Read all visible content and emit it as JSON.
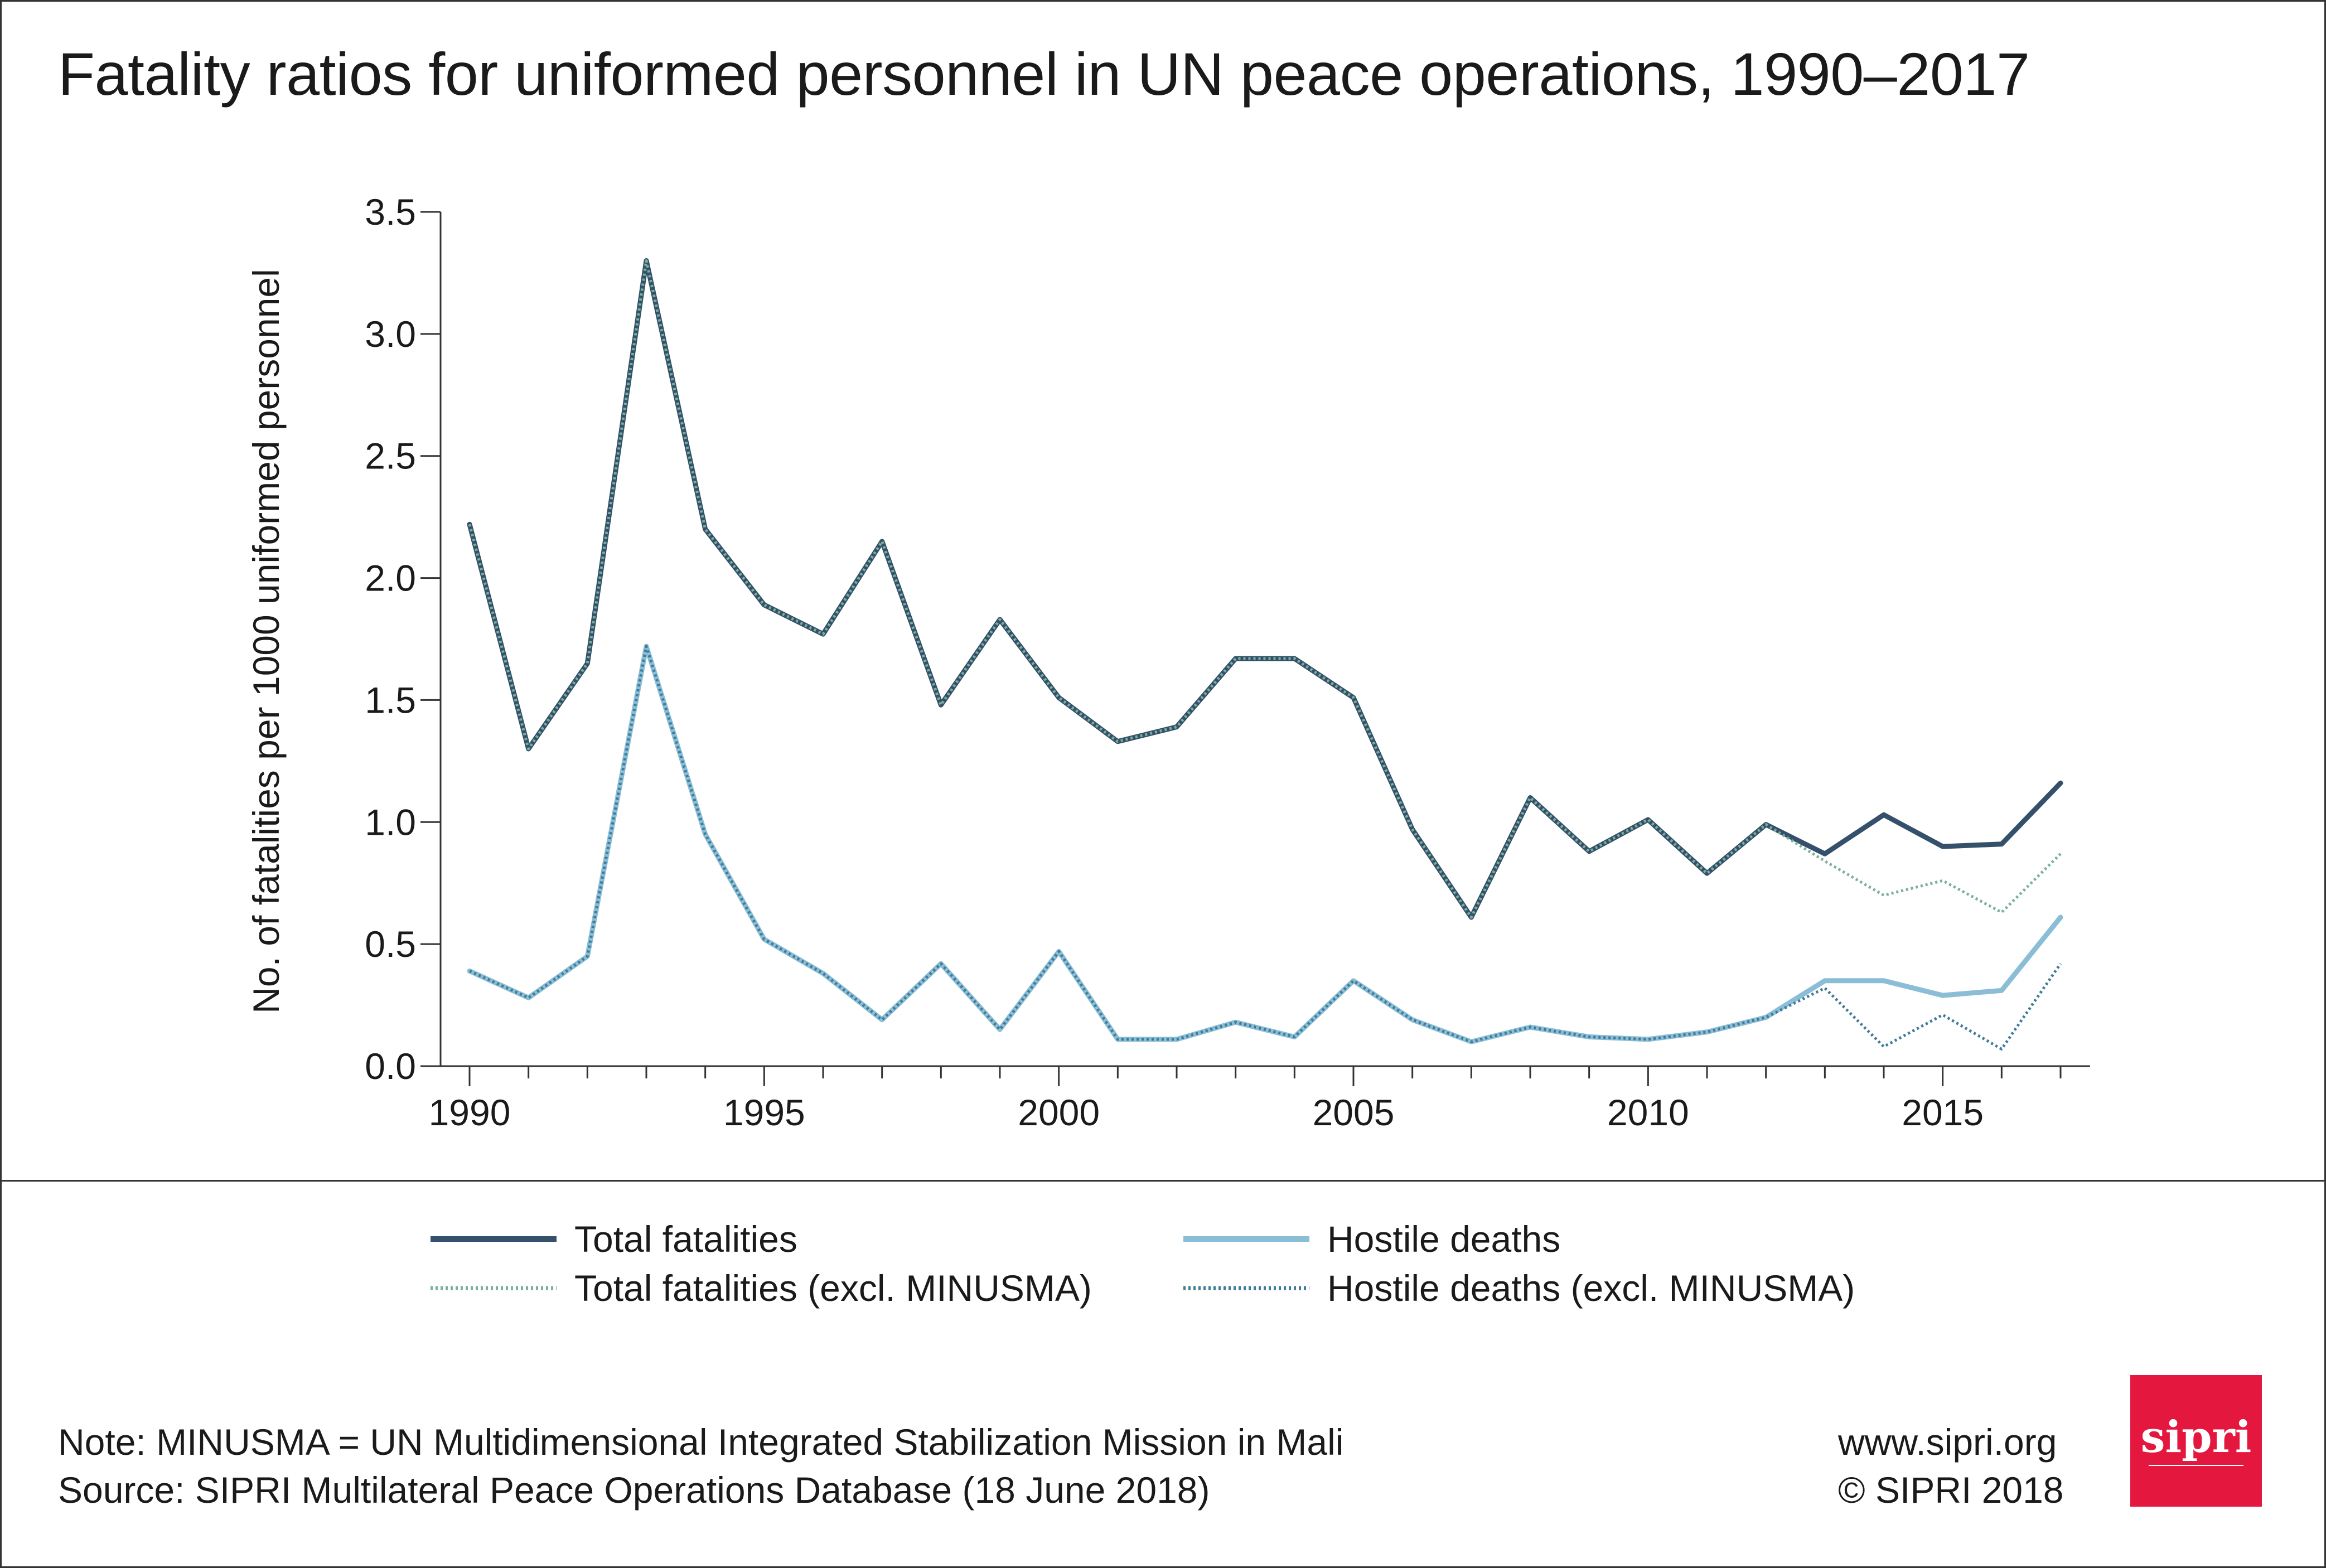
{
  "chart_data": {
    "type": "line",
    "title": "Fatality ratios for uniformed personnel in UN peace operations, 1990–2017",
    "ylabel": "No. of fatalities per 1000 uniformed personnel",
    "xlabel": "",
    "xlim": [
      1990,
      2017.5
    ],
    "ylim": [
      0,
      3.5
    ],
    "x_ticks": [
      "1990",
      "1995",
      "2000",
      "2005",
      "2010",
      "2015"
    ],
    "y_ticks": [
      "0.0",
      "0.5",
      "1.0",
      "1.5",
      "2.0",
      "2.5",
      "3.0",
      "3.5"
    ],
    "x": [
      1990,
      1991,
      1992,
      1993,
      1994,
      1995,
      1996,
      1997,
      1998,
      1999,
      2000,
      2001,
      2002,
      2003,
      2004,
      2005,
      2006,
      2007,
      2008,
      2009,
      2010,
      2011,
      2012,
      2013,
      2014,
      2015,
      2016,
      2017
    ],
    "grid": false,
    "legend_position": "bottom",
    "series": [
      {
        "name": "Total fatalities",
        "color": "#34506a",
        "style": "solid",
        "values": [
          2.22,
          1.3,
          1.65,
          3.3,
          2.2,
          1.89,
          1.77,
          2.15,
          1.48,
          1.83,
          1.51,
          1.33,
          1.39,
          1.67,
          1.67,
          1.51,
          0.97,
          0.61,
          1.1,
          0.88,
          1.01,
          0.79,
          0.99,
          0.87,
          1.03,
          0.9,
          0.91,
          1.16
        ]
      },
      {
        "name": "Total fatalities (excl. MINUSMA)",
        "color": "#7ab09a",
        "style": "dotted",
        "values": [
          2.22,
          1.3,
          1.65,
          3.3,
          2.2,
          1.89,
          1.77,
          2.15,
          1.48,
          1.83,
          1.51,
          1.33,
          1.39,
          1.67,
          1.67,
          1.51,
          0.97,
          0.61,
          1.1,
          0.88,
          1.01,
          0.79,
          0.99,
          0.84,
          0.7,
          0.76,
          0.63,
          0.87
        ]
      },
      {
        "name": "Hostile deaths",
        "color": "#8bbdd6",
        "style": "solid",
        "values": [
          0.39,
          0.28,
          0.45,
          1.72,
          0.95,
          0.52,
          0.38,
          0.19,
          0.42,
          0.15,
          0.47,
          0.11,
          0.11,
          0.18,
          0.12,
          0.35,
          0.19,
          0.1,
          0.16,
          0.12,
          0.11,
          0.14,
          0.2,
          0.35,
          0.35,
          0.29,
          0.31,
          0.61
        ]
      },
      {
        "name": "Hostile deaths (excl. MINUSMA)",
        "color": "#3e7b97",
        "style": "dotted",
        "values": [
          0.39,
          0.28,
          0.45,
          1.72,
          0.95,
          0.52,
          0.38,
          0.19,
          0.42,
          0.15,
          0.47,
          0.11,
          0.11,
          0.18,
          0.12,
          0.35,
          0.19,
          0.1,
          0.16,
          0.12,
          0.11,
          0.14,
          0.2,
          0.32,
          0.08,
          0.21,
          0.07,
          0.42
        ]
      }
    ]
  },
  "legend": [
    {
      "label": "Total fatalities",
      "color": "#34506a",
      "style": "solid"
    },
    {
      "label": "Hostile deaths",
      "color": "#8bbdd6",
      "style": "solid"
    },
    {
      "label": "Total fatalities (excl. MINUSMA)",
      "color": "#7ab09a",
      "style": "dotted"
    },
    {
      "label": "Hostile deaths (excl. MINUSMA)",
      "color": "#3e7b97",
      "style": "dotted"
    }
  ],
  "footer": {
    "note": "Note: MINUSMA = UN Multidimensional Integrated Stabilization Mission in Mali",
    "source": "Source: SIPRI Multilateral Peace Operations Database (18 June 2018)",
    "website": "www.sipri.org",
    "copyright": "© SIPRI 2018"
  },
  "logo": {
    "text": "sipri",
    "color": "#e4173e"
  }
}
